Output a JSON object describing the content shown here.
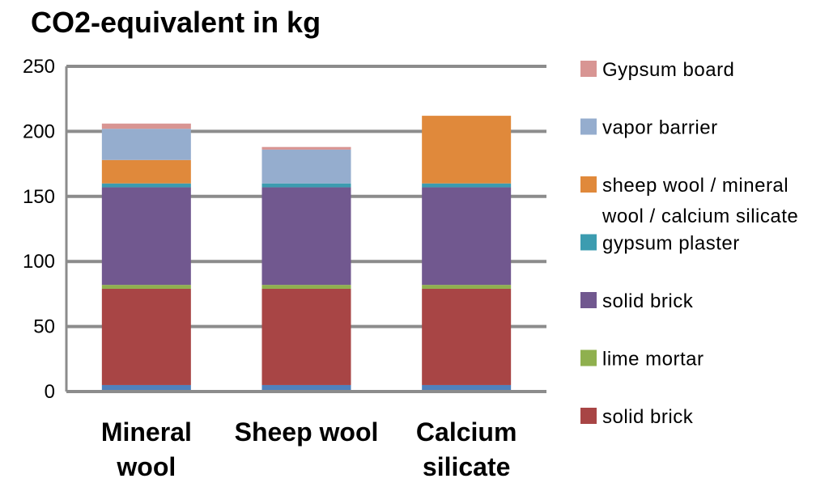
{
  "chart_data": {
    "type": "bar",
    "stacked": true,
    "title": "CO2-equivalent in kg",
    "xlabel": "",
    "ylabel": "",
    "ylim": [
      0,
      250
    ],
    "yticks": [
      0,
      50,
      100,
      150,
      200,
      250
    ],
    "grid": true,
    "legend_position": "right",
    "categories": [
      [
        "Mineral",
        "wool"
      ],
      [
        "Sheep wool"
      ],
      [
        "Calcium",
        "silicate"
      ]
    ],
    "series": [
      {
        "name": "",
        "color": "#4f81bd",
        "values": [
          5,
          5,
          5
        ]
      },
      {
        "name": "solid brick",
        "color": "#a84545",
        "values": [
          74,
          74,
          74
        ]
      },
      {
        "name": "lime mortar",
        "color": "#8fb04e",
        "values": [
          3,
          3,
          3
        ]
      },
      {
        "name": "solid brick",
        "color": "#71588f",
        "values": [
          75,
          75,
          75
        ]
      },
      {
        "name": "gypsum plaster",
        "color": "#3c9cb0",
        "values": [
          3,
          3,
          3
        ]
      },
      {
        "name": [
          "sheep wool / mineral",
          "wool / calcium silicate"
        ],
        "color": "#e0893b",
        "values": [
          18,
          0,
          52
        ]
      },
      {
        "name": "vapor barrier",
        "color": "#95adce",
        "values": [
          24,
          26,
          0
        ]
      },
      {
        "name": "Gypsum board",
        "color": "#d89593",
        "values": [
          4,
          2,
          0
        ]
      }
    ]
  }
}
